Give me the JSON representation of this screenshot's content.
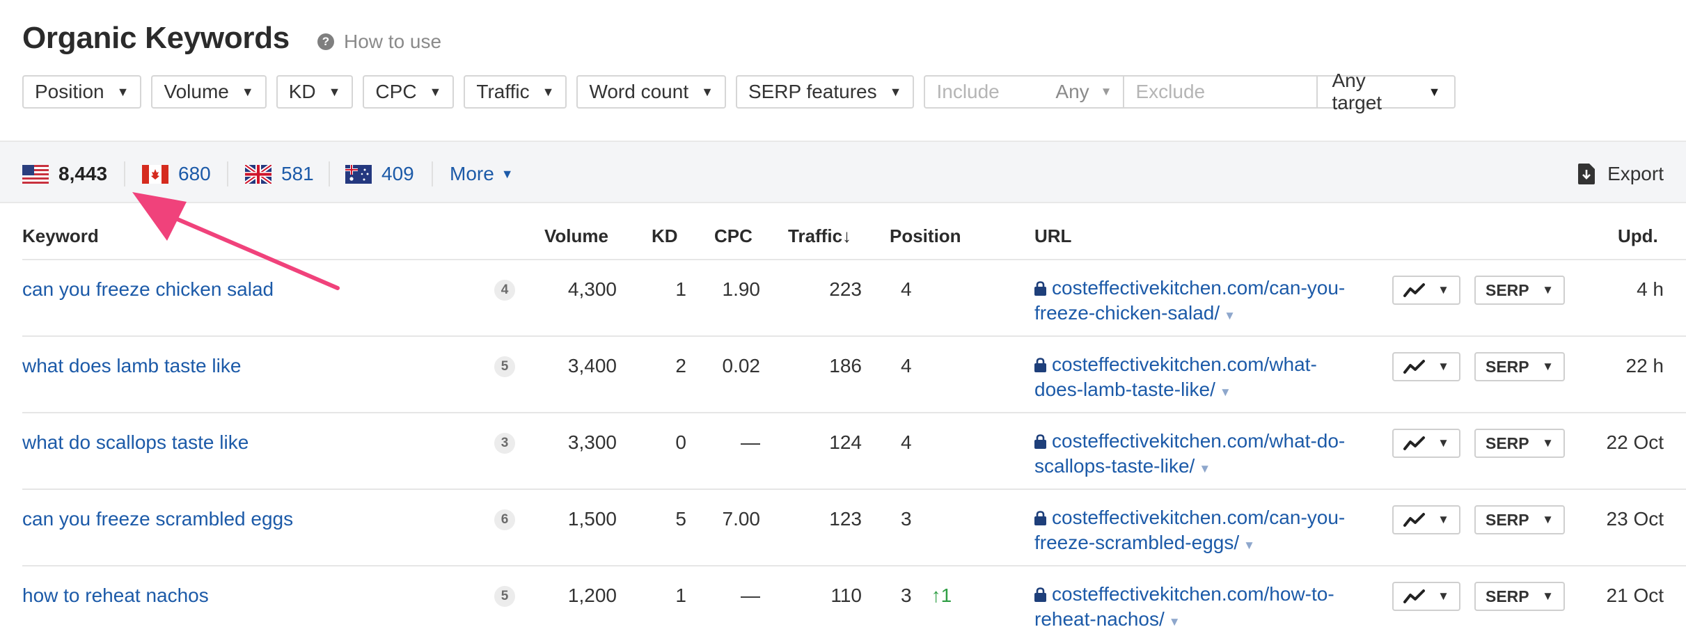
{
  "header": {
    "title": "Organic Keywords",
    "how_to_use": "How to use",
    "help_icon_glyph": "?"
  },
  "filters": {
    "position": "Position",
    "volume": "Volume",
    "kd": "KD",
    "cpc": "CPC",
    "traffic": "Traffic",
    "word_count": "Word count",
    "serp_features": "SERP features",
    "include_placeholder": "Include",
    "include_mode": "Any",
    "exclude_placeholder": "Exclude",
    "target": "Any target"
  },
  "countries": [
    {
      "name": "United States",
      "count": "8,443"
    },
    {
      "name": "Canada",
      "count": "680"
    },
    {
      "name": "United Kingdom",
      "count": "581"
    },
    {
      "name": "Australia",
      "count": "409"
    }
  ],
  "more_label": "More",
  "export_label": "Export",
  "table": {
    "headers": {
      "keyword": "Keyword",
      "volume": "Volume",
      "kd": "KD",
      "cpc": "CPC",
      "traffic": "Traffic",
      "traffic_sort": "↓",
      "position": "Position",
      "url": "URL",
      "updated": "Upd."
    },
    "serp_label": "SERP",
    "rows": [
      {
        "keyword": "can you freeze chicken salad",
        "words": "4",
        "volume": "4,300",
        "kd": "1",
        "cpc": "1.90",
        "traffic": "223",
        "position": "4",
        "change": "",
        "url1": "costeffectivekitchen.com/can-you-",
        "url2": "freeze-chicken-salad/",
        "updated": "4 h"
      },
      {
        "keyword": "what does lamb taste like",
        "words": "5",
        "volume": "3,400",
        "kd": "2",
        "cpc": "0.02",
        "traffic": "186",
        "position": "4",
        "change": "",
        "url1": "costeffectivekitchen.com/what-",
        "url2": "does-lamb-taste-like/",
        "updated": "22 h"
      },
      {
        "keyword": "what do scallops taste like",
        "words": "3",
        "volume": "3,300",
        "kd": "0",
        "cpc": "—",
        "traffic": "124",
        "position": "4",
        "change": "",
        "url1": "costeffectivekitchen.com/what-do-",
        "url2": "scallops-taste-like/",
        "updated": "22 Oct"
      },
      {
        "keyword": "can you freeze scrambled eggs",
        "words": "6",
        "volume": "1,500",
        "kd": "5",
        "cpc": "7.00",
        "traffic": "123",
        "position": "3",
        "change": "",
        "url1": "costeffectivekitchen.com/can-you-",
        "url2": "freeze-scrambled-eggs/",
        "updated": "23 Oct"
      },
      {
        "keyword": "how to reheat nachos",
        "words": "5",
        "volume": "1,200",
        "kd": "1",
        "cpc": "—",
        "traffic": "110",
        "position": "3",
        "change": "↑1",
        "url1": "costeffectivekitchen.com/how-to-",
        "url2": "reheat-nachos/",
        "updated": "21 Oct"
      }
    ]
  },
  "colors": {
    "link": "#1c5aa8",
    "arrow": "#f0427b",
    "position_up": "#2f9e44"
  },
  "icons": [
    "help-icon",
    "caret-down-icon",
    "us-flag-icon",
    "canada-flag-icon",
    "uk-flag-icon",
    "australia-flag-icon",
    "export-icon",
    "lock-icon",
    "trend-chart-icon",
    "pink-arrow-annotation"
  ]
}
